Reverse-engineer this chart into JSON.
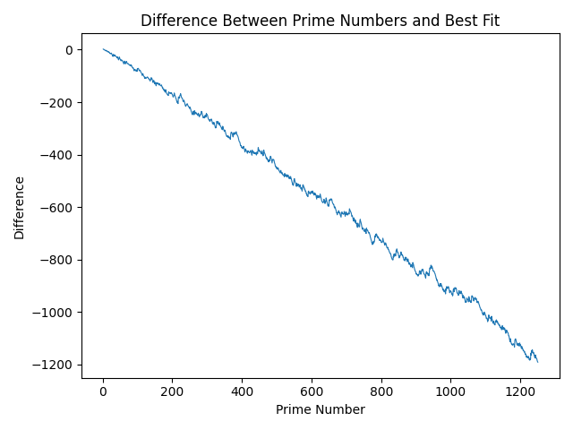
{
  "title": "Difference Between Prime Numbers and Best Fit",
  "xlabel": "Prime Number",
  "ylabel": "Difference",
  "line_color": "#1f77b4",
  "line_width": 0.8,
  "figsize": [
    6.4,
    4.8
  ],
  "dpi": 100
}
